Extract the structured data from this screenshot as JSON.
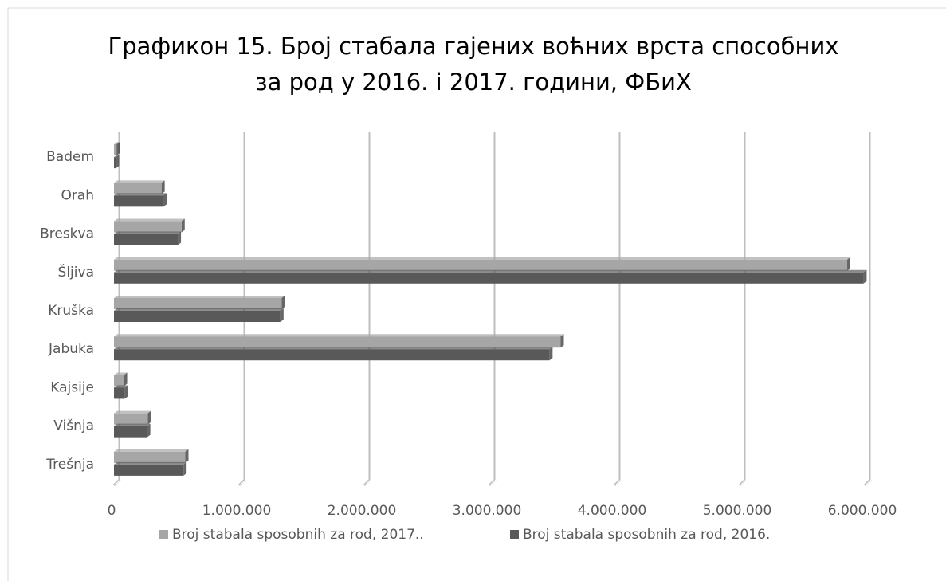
{
  "chart_data": {
    "type": "barh",
    "title": [
      "Графикон 15. Број стабала гајених воћних врста способних",
      "за род у 2016. і 2017. години,  ФБиХ"
    ],
    "categories": [
      "Badem",
      "Orah",
      "Breskva",
      "Šljiva",
      "Kruška",
      "Jabuka",
      "Kajsije",
      "Višnja",
      "Trešnja"
    ],
    "series": [
      {
        "name": "Broj stabala sposobnih za rod, 2017..",
        "color": "#a6a6a6",
        "values": [
          20000,
          380000,
          540000,
          5860000,
          1340000,
          3570000,
          80000,
          270000,
          570000
        ]
      },
      {
        "name": "Broj stabala sposobnih za rod, 2016.",
        "color": "#595959",
        "values": [
          15000,
          395000,
          510000,
          5990000,
          1330000,
          3480000,
          85000,
          265000,
          555000
        ]
      }
    ],
    "xlim": [
      0,
      6000000
    ],
    "xticks": [
      0,
      {
        "value": 1000000,
        "label": "1.000.000"
      },
      {
        "value": 2000000,
        "label": "2.000.000"
      },
      {
        "value": 3000000,
        "label": "3.000.000"
      },
      {
        "value": 4000000,
        "label": "4.000.000"
      },
      {
        "value": 5000000,
        "label": "5.000.000"
      },
      {
        "value": 6000000,
        "label": "6.000.000"
      }
    ],
    "grid": true,
    "legend": "bottom"
  }
}
